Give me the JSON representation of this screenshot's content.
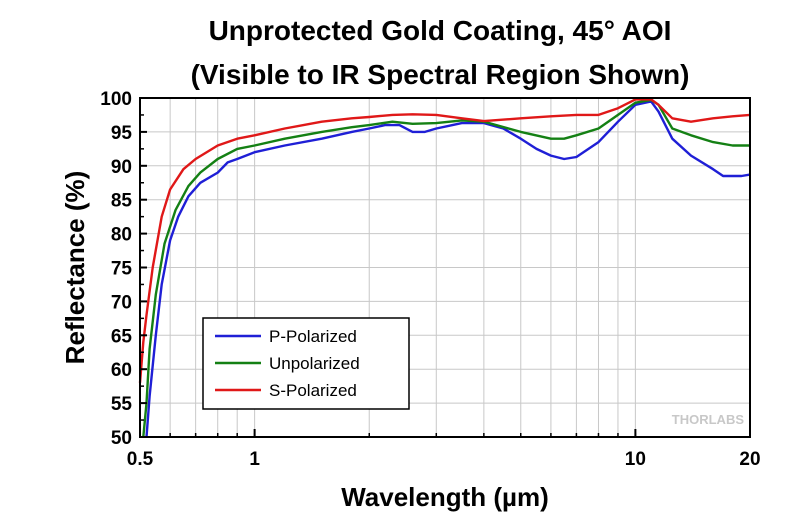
{
  "watermark": "THORLABS",
  "chart_data": {
    "type": "line",
    "title": [
      "Unprotected Gold Coating, 45° AOI",
      "(Visible to IR Spectral Region Shown)"
    ],
    "xlabel": "Wavelength (µm)",
    "ylabel": "Reflectance (%)",
    "xscale": "log",
    "xlim": [
      0.5,
      20
    ],
    "ylim": [
      50,
      100
    ],
    "x_major_ticks": [
      0.5,
      1,
      10,
      20
    ],
    "x_tick_labels": [
      "0.5",
      "1",
      "10",
      "20"
    ],
    "y_ticks": [
      50,
      55,
      60,
      65,
      70,
      75,
      80,
      85,
      90,
      95,
      100
    ],
    "y_tick_labels": [
      "50",
      "55",
      "60",
      "65",
      "70",
      "75",
      "80",
      "85",
      "90",
      "95",
      "100"
    ],
    "grid": true,
    "legend_position": "lower-left",
    "series": [
      {
        "name": "P-Polarized",
        "color": "#1f1fd6",
        "points": [
          [
            0.52,
            50
          ],
          [
            0.53,
            56
          ],
          [
            0.55,
            65
          ],
          [
            0.57,
            72.5
          ],
          [
            0.6,
            79
          ],
          [
            0.63,
            82.5
          ],
          [
            0.67,
            85.5
          ],
          [
            0.72,
            87.5
          ],
          [
            0.8,
            89
          ],
          [
            0.85,
            90.5
          ],
          [
            0.9,
            91
          ],
          [
            1.0,
            92
          ],
          [
            1.2,
            93
          ],
          [
            1.5,
            94
          ],
          [
            1.8,
            95
          ],
          [
            2.0,
            95.5
          ],
          [
            2.2,
            96
          ],
          [
            2.4,
            96
          ],
          [
            2.6,
            95
          ],
          [
            2.8,
            95
          ],
          [
            3.0,
            95.5
          ],
          [
            3.5,
            96.3
          ],
          [
            4.0,
            96.3
          ],
          [
            4.5,
            95.5
          ],
          [
            5.0,
            94
          ],
          [
            5.5,
            92.5
          ],
          [
            6.0,
            91.5
          ],
          [
            6.5,
            91
          ],
          [
            7.0,
            91.3
          ],
          [
            8.0,
            93.5
          ],
          [
            9.0,
            96.5
          ],
          [
            10.0,
            99
          ],
          [
            11.0,
            99.5
          ],
          [
            11.5,
            98
          ],
          [
            12.5,
            94
          ],
          [
            14.0,
            91.5
          ],
          [
            16.0,
            89.5
          ],
          [
            17.0,
            88.5
          ],
          [
            19.0,
            88.5
          ],
          [
            20.0,
            88.7
          ]
        ]
      },
      {
        "name": "Unpolarized",
        "color": "#148014",
        "points": [
          [
            0.51,
            50
          ],
          [
            0.52,
            55
          ],
          [
            0.53,
            63
          ],
          [
            0.55,
            71
          ],
          [
            0.58,
            78.5
          ],
          [
            0.62,
            83.5
          ],
          [
            0.67,
            87
          ],
          [
            0.72,
            89
          ],
          [
            0.8,
            91
          ],
          [
            0.9,
            92.5
          ],
          [
            1.0,
            93
          ],
          [
            1.2,
            94
          ],
          [
            1.5,
            95
          ],
          [
            1.8,
            95.7
          ],
          [
            2.0,
            96
          ],
          [
            2.3,
            96.5
          ],
          [
            2.6,
            96.2
          ],
          [
            3.0,
            96.3
          ],
          [
            3.5,
            96.7
          ],
          [
            4.0,
            96.5
          ],
          [
            5.0,
            95
          ],
          [
            6.0,
            94
          ],
          [
            6.5,
            94
          ],
          [
            7.0,
            94.5
          ],
          [
            8.0,
            95.5
          ],
          [
            9.0,
            97.5
          ],
          [
            10.0,
            99.3
          ],
          [
            11.0,
            99.7
          ],
          [
            11.5,
            99
          ],
          [
            12.5,
            95.5
          ],
          [
            14.0,
            94.5
          ],
          [
            16.0,
            93.5
          ],
          [
            18.0,
            93
          ],
          [
            20.0,
            93
          ]
        ]
      },
      {
        "name": "S-Polarized",
        "color": "#e01818",
        "points": [
          [
            0.5,
            58
          ],
          [
            0.51,
            64
          ],
          [
            0.52,
            68
          ],
          [
            0.54,
            75
          ],
          [
            0.57,
            82.5
          ],
          [
            0.6,
            86.5
          ],
          [
            0.65,
            89.5
          ],
          [
            0.7,
            91
          ],
          [
            0.8,
            93
          ],
          [
            0.9,
            94
          ],
          [
            1.0,
            94.5
          ],
          [
            1.2,
            95.5
          ],
          [
            1.5,
            96.5
          ],
          [
            1.8,
            97
          ],
          [
            2.0,
            97.2
          ],
          [
            2.3,
            97.5
          ],
          [
            2.6,
            97.6
          ],
          [
            3.0,
            97.5
          ],
          [
            3.5,
            97
          ],
          [
            4.0,
            96.6
          ],
          [
            5.0,
            97
          ],
          [
            6.0,
            97.3
          ],
          [
            7.0,
            97.5
          ],
          [
            8.0,
            97.5
          ],
          [
            9.0,
            98.5
          ],
          [
            10.0,
            99.8
          ],
          [
            11.0,
            99.8
          ],
          [
            11.5,
            99
          ],
          [
            12.5,
            97
          ],
          [
            14.0,
            96.5
          ],
          [
            16.0,
            97
          ],
          [
            18.0,
            97.3
          ],
          [
            20.0,
            97.5
          ]
        ]
      }
    ]
  }
}
